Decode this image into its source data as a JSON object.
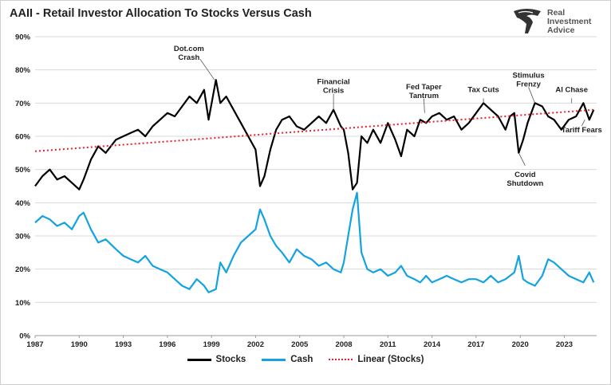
{
  "title": "AAII - Retail Investor Allocation To Stocks Versus Cash",
  "logo": {
    "line1": "Real",
    "line2": "Investment",
    "line3": "Advice"
  },
  "colors": {
    "stocks": "#000000",
    "cash": "#12a3e0",
    "linear": "#e8202a",
    "grid": "#d9d9d9",
    "text": "#222222"
  },
  "chart_data": {
    "type": "line",
    "title": "AAII - Retail Investor Allocation To Stocks Versus Cash",
    "xlabel": "",
    "ylabel": "",
    "xlim": [
      1987,
      2025.2
    ],
    "ylim": [
      0,
      90
    ],
    "y_ticks": [
      "0%",
      "10%",
      "20%",
      "30%",
      "40%",
      "50%",
      "60%",
      "70%",
      "80%",
      "90%"
    ],
    "x_ticks": [
      "1987",
      "1990",
      "1993",
      "1996",
      "1999",
      "2002",
      "2005",
      "2008",
      "2011",
      "2014",
      "2017",
      "2020",
      "2023"
    ],
    "grid": "horizontal",
    "legend_position": "bottom",
    "series": [
      {
        "name": "Stocks",
        "x": [
          1987.0,
          1987.5,
          1988.0,
          1988.5,
          1989.0,
          1989.5,
          1990.0,
          1990.3,
          1990.8,
          1991.3,
          1991.8,
          1992.5,
          1993.0,
          1993.5,
          1994.0,
          1994.5,
          1995.0,
          1995.5,
          1996.0,
          1996.5,
          1997.0,
          1997.5,
          1998.0,
          1998.5,
          1998.8,
          1999.3,
          1999.6,
          2000.0,
          2000.5,
          2001.0,
          2001.5,
          2002.0,
          2002.3,
          2002.6,
          2003.0,
          2003.4,
          2003.8,
          2004.3,
          2004.8,
          2005.3,
          2005.8,
          2006.3,
          2006.8,
          2007.3,
          2007.8,
          2008.0,
          2008.3,
          2008.6,
          2008.9,
          2009.2,
          2009.6,
          2010.0,
          2010.5,
          2011.0,
          2011.5,
          2011.9,
          2012.3,
          2012.8,
          2013.2,
          2013.6,
          2014.0,
          2014.5,
          2015.0,
          2015.5,
          2016.0,
          2016.5,
          2017.0,
          2017.5,
          2018.0,
          2018.5,
          2019.0,
          2019.3,
          2019.6,
          2019.9,
          2020.2,
          2020.5,
          2021.0,
          2021.5,
          2021.9,
          2022.3,
          2022.8,
          2023.3,
          2023.8,
          2024.3,
          2024.7,
          2025.0
        ],
        "values": [
          45,
          48,
          50,
          47,
          48,
          46,
          44,
          47,
          53,
          57,
          55,
          59,
          60,
          61,
          62,
          60,
          63,
          65,
          67,
          66,
          69,
          72,
          70,
          74,
          65,
          77,
          70,
          72,
          68,
          64,
          60,
          56,
          45,
          48,
          56,
          62,
          65,
          66,
          63,
          62,
          64,
          66,
          64,
          68,
          63,
          62,
          55,
          44,
          46,
          60,
          58,
          62,
          58,
          64,
          59,
          54,
          62,
          60,
          65,
          64,
          66,
          67,
          65,
          66,
          62,
          64,
          67,
          70,
          68,
          66,
          62,
          66,
          67,
          55,
          59,
          64,
          70,
          69,
          66,
          65,
          62,
          65,
          66,
          70,
          65,
          68
        ]
      },
      {
        "name": "Cash",
        "x": [
          1987.0,
          1987.5,
          1988.0,
          1988.5,
          1989.0,
          1989.5,
          1990.0,
          1990.3,
          1990.8,
          1991.3,
          1991.8,
          1992.5,
          1993.0,
          1993.5,
          1994.0,
          1994.5,
          1995.0,
          1995.5,
          1996.0,
          1996.5,
          1997.0,
          1997.5,
          1998.0,
          1998.5,
          1998.8,
          1999.3,
          1999.6,
          2000.0,
          2000.5,
          2001.0,
          2001.5,
          2002.0,
          2002.3,
          2002.6,
          2003.0,
          2003.4,
          2003.8,
          2004.3,
          2004.8,
          2005.3,
          2005.8,
          2006.3,
          2006.8,
          2007.3,
          2007.8,
          2008.0,
          2008.3,
          2008.6,
          2008.9,
          2009.2,
          2009.6,
          2010.0,
          2010.5,
          2011.0,
          2011.5,
          2011.9,
          2012.3,
          2012.8,
          2013.2,
          2013.6,
          2014.0,
          2014.5,
          2015.0,
          2015.5,
          2016.0,
          2016.5,
          2017.0,
          2017.5,
          2018.0,
          2018.5,
          2019.0,
          2019.3,
          2019.6,
          2019.9,
          2020.2,
          2020.5,
          2021.0,
          2021.5,
          2021.9,
          2022.3,
          2022.8,
          2023.3,
          2023.8,
          2024.3,
          2024.7,
          2025.0
        ],
        "values": [
          34,
          36,
          35,
          33,
          34,
          32,
          36,
          37,
          32,
          28,
          29,
          26,
          24,
          23,
          22,
          24,
          21,
          20,
          19,
          17,
          15,
          14,
          17,
          15,
          13,
          14,
          22,
          19,
          24,
          28,
          30,
          32,
          38,
          35,
          30,
          27,
          25,
          22,
          26,
          24,
          23,
          21,
          22,
          20,
          19,
          22,
          30,
          38,
          43,
          25,
          20,
          19,
          20,
          18,
          19,
          21,
          18,
          17,
          16,
          18,
          16,
          17,
          18,
          17,
          16,
          17,
          17,
          16,
          18,
          16,
          17,
          18,
          19,
          24,
          17,
          16,
          15,
          18,
          23,
          22,
          20,
          18,
          17,
          16,
          19,
          16
        ]
      },
      {
        "name": "Linear (Stocks)",
        "x": [
          1987.0,
          2025.0
        ],
        "values": [
          55.5,
          68.0
        ]
      }
    ],
    "annotations": [
      {
        "text": [
          "Dot.com",
          "Crash"
        ],
        "x": 1999.2,
        "y": 77
      },
      {
        "text": [
          "Financial",
          "Crisis"
        ],
        "x": 2007.3,
        "y": 68
      },
      {
        "text": [
          "Fed Taper",
          "Tantrum"
        ],
        "x": 2013.5,
        "y": 67
      },
      {
        "text": [
          "Tax Cuts"
        ],
        "x": 2017.5,
        "y": 70
      },
      {
        "text": [
          "Stimulus",
          "Frenzy"
        ],
        "x": 2021.0,
        "y": 70
      },
      {
        "text": [
          "AI Chase"
        ],
        "x": 2023.5,
        "y": 70
      },
      {
        "text": [
          "Covid",
          "Shutdown"
        ],
        "x": 2019.9,
        "y": 55
      },
      {
        "text": [
          "Tariff Fears"
        ],
        "x": 2024.4,
        "y": 65
      }
    ]
  },
  "legend": [
    {
      "label": "Stocks"
    },
    {
      "label": "Cash"
    },
    {
      "label": "Linear (Stocks)"
    }
  ]
}
